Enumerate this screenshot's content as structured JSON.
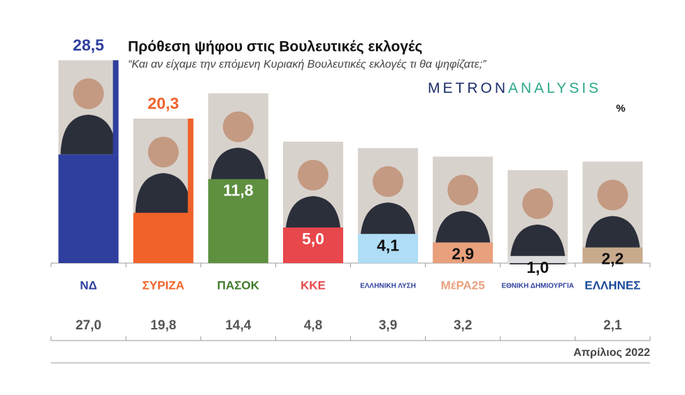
{
  "chart_data": {
    "type": "bar",
    "title": "Πρόθεση ψήφου στις Βουλευτικές εκλογές",
    "subtitle": "“Και αν είχαμε την επόμενη Κυριακή Βουλευτικές εκλογές τι θα ψηφίζατε;”",
    "brand": [
      "METRON",
      "ANALYSIS"
    ],
    "unit": "%",
    "categories": [
      "ΝΔ",
      "ΣΥΡΙΖΑ",
      "ΠΑΣΟΚ",
      "ΚΚΕ",
      "ΕΛΛΗΝΙΚΗ ΛΥΣΗ",
      "ΜέΡΑ25",
      "ΕΘΝΙΚΗ ΔΗΜΙΟΥΡΓΙΑ",
      "ΕΛΛΗΝΕΣ"
    ],
    "values": [
      28.5,
      20.3,
      11.8,
      5.0,
      4.1,
      2.9,
      1.0,
      2.2
    ],
    "value_labels": [
      "28,5",
      "20,3",
      "11,8",
      "5,0",
      "4,1",
      "2,9",
      "1,0",
      "2,2"
    ],
    "colors": [
      "#2f3f9e",
      "#f0622a",
      "#5e9040",
      "#e8474b",
      "#aeddf5",
      "#e9a07c",
      "#dcdcdc",
      "#c8aa8c"
    ],
    "comparison": {
      "label": "Απρίλιος 2022",
      "values": [
        27.0,
        19.8,
        14.4,
        4.8,
        3.9,
        3.2,
        null,
        2.1
      ],
      "value_labels": [
        "27,0",
        "19,8",
        "14,4",
        "4,8",
        "3,9",
        "3,2",
        null,
        "2,1"
      ]
    }
  }
}
